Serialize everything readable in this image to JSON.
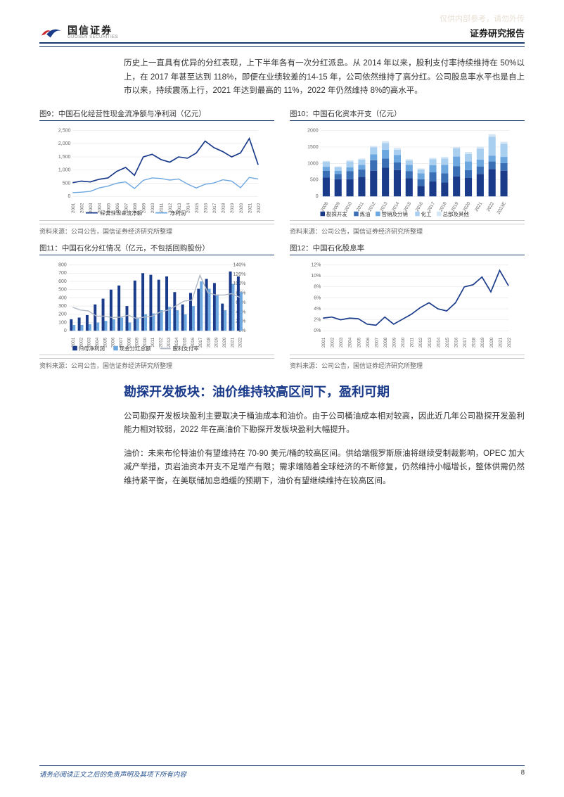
{
  "watermark": "仅供内部参考，请勿外传",
  "header": {
    "logo_cn": "国信证券",
    "logo_en": "GUOSEN SECURITIES",
    "report_type": "证券研究报告"
  },
  "paragraph1": "历史上一直具有优异的分红表现，上下半年各有一次分红派息。从 2014 年以来，股利支付率持续维持在 50%以上，在 2017 年甚至达到 118%，即便在业绩较差的14-15 年，公司依然维持了高分红。公司股息率水平也是自上市以来，持续震荡上行，2021 年达到最高的 11%，2022 年仍然维持 8%的高水平。",
  "chart9": {
    "title": "图9：中国石化经营性现金流净额与净利润（亿元）",
    "type": "line",
    "source": "资料来源：公司公告，国信证券经济研究所整理",
    "categories": [
      "2001",
      "2002",
      "2003",
      "2004",
      "2005",
      "2006",
      "2007",
      "2008",
      "2009",
      "2010",
      "2011",
      "2012",
      "2013",
      "2014",
      "2015",
      "2016",
      "2017",
      "2018",
      "2019",
      "2020",
      "2021",
      "2022"
    ],
    "series": [
      {
        "name": "经营性现金流净额",
        "color": "#1a3a8a",
        "width": 1.8,
        "values": [
          520,
          580,
          550,
          650,
          700,
          950,
          1100,
          800,
          1500,
          1600,
          1400,
          1300,
          1500,
          1450,
          1650,
          2100,
          1850,
          1700,
          1500,
          1650,
          2200,
          1200
        ]
      },
      {
        "name": "净利润",
        "color": "#6da7e0",
        "width": 1.5,
        "values": [
          140,
          160,
          190,
          320,
          390,
          500,
          550,
          300,
          610,
          700,
          680,
          620,
          660,
          470,
          320,
          460,
          510,
          630,
          580,
          330,
          720,
          660
        ]
      }
    ],
    "ylim": [
      0,
      2500
    ],
    "ytick_step": 500,
    "background_color": "#ffffff",
    "grid_color": "#dddddd",
    "label_fontsize": 7
  },
  "chart10": {
    "title": "图10：中国石化资本开支（亿元）",
    "type": "stacked-bar",
    "source": "资料来源：公司公告，国信证券经济研究所整理",
    "categories": [
      "2008",
      "2009",
      "2010",
      "2011",
      "2012",
      "2013",
      "2014",
      "2015",
      "2016",
      "2017",
      "2018",
      "2019",
      "2020",
      "2021",
      "2022",
      "2023E"
    ],
    "stack_keys": [
      "勘探开发",
      "炼油",
      "营销及分销",
      "化工",
      "总部及其他"
    ],
    "stack_colors": [
      "#1a3a8a",
      "#3a6eb5",
      "#6da7e0",
      "#a8cef0",
      "#d5e6f5"
    ],
    "stacks": [
      [
        570,
        210,
        120,
        150,
        30
      ],
      [
        520,
        160,
        100,
        110,
        20
      ],
      [
        520,
        250,
        110,
        180,
        40
      ],
      [
        590,
        230,
        140,
        160,
        30
      ],
      [
        780,
        320,
        180,
        210,
        40
      ],
      [
        870,
        280,
        270,
        200,
        60
      ],
      [
        800,
        230,
        230,
        160,
        50
      ],
      [
        550,
        220,
        190,
        130,
        40
      ],
      [
        320,
        200,
        180,
        120,
        30
      ],
      [
        460,
        270,
        220,
        180,
        40
      ],
      [
        420,
        280,
        260,
        190,
        50
      ],
      [
        610,
        310,
        290,
        250,
        40
      ],
      [
        560,
        240,
        260,
        230,
        60
      ],
      [
        680,
        230,
        210,
        330,
        60
      ],
      [
        830,
        230,
        180,
        570,
        80
      ],
      [
        780,
        230,
        190,
        400,
        60
      ]
    ],
    "ylim": [
      0,
      2000
    ],
    "ytick_step": 500,
    "background_color": "#ffffff",
    "grid_color": "#dddddd",
    "bar_width": 0.6
  },
  "chart11": {
    "title": "图11：中国石化分红情况（亿元，不包括回购股份）",
    "type": "combo",
    "source": "资料来源：公司公告，国信证券经济研究所整理",
    "categories": [
      "2001",
      "2002",
      "2003",
      "2004",
      "2005",
      "2006",
      "2007",
      "2008",
      "2009",
      "2010",
      "2011",
      "2012",
      "2013",
      "2014",
      "2015",
      "2016",
      "2017",
      "2018",
      "2019",
      "2020",
      "2021",
      "2022"
    ],
    "bars": [
      {
        "name": "归母净利润",
        "color": "#1a3a8a",
        "values": [
          140,
          160,
          190,
          320,
          390,
          500,
          550,
          300,
          610,
          700,
          680,
          620,
          660,
          470,
          320,
          460,
          510,
          630,
          580,
          330,
          720,
          660
        ]
      },
      {
        "name": "现金分红总额",
        "color": "#6da7e0",
        "values": [
          70,
          70,
          80,
          100,
          120,
          140,
          160,
          100,
          160,
          200,
          210,
          250,
          290,
          250,
          200,
          300,
          600,
          510,
          440,
          250,
          570,
          470
        ]
      }
    ],
    "line": {
      "name": "股利支付率",
      "color": "#b0b8c4",
      "values": [
        50,
        44,
        42,
        31,
        31,
        28,
        29,
        33,
        26,
        29,
        31,
        40,
        44,
        53,
        63,
        65,
        118,
        81,
        76,
        76,
        79,
        71
      ]
    },
    "ylim_left": [
      0,
      800
    ],
    "ytick_left": 100,
    "ylim_right": [
      0,
      140
    ],
    "ytick_right": 20,
    "yright_suffix": "%",
    "background_color": "#ffffff",
    "grid_color": "#dddddd",
    "bar_width": 0.35
  },
  "chart12": {
    "title": "图12：中国石化股息率",
    "type": "line",
    "source": "资料来源：公司公告，国信证券经济研究所整理",
    "categories": [
      "2001",
      "2002",
      "2003",
      "2004",
      "2005",
      "2006",
      "2007",
      "2008",
      "2009",
      "2010",
      "2011",
      "2012",
      "2013",
      "2014",
      "2015",
      "2016",
      "2017",
      "2018",
      "2019",
      "2020",
      "2021",
      "2022"
    ],
    "series": [
      {
        "name": "股息率",
        "color": "#1a3a8a",
        "width": 1.8,
        "values": [
          2.3,
          2.5,
          2.0,
          2.3,
          2.2,
          1.2,
          1.0,
          2.5,
          1.2,
          2.1,
          3.0,
          4.2,
          5.1,
          4.0,
          3.6,
          5.1,
          8.0,
          8.4,
          9.8,
          7.1,
          11.0,
          8.2
        ]
      }
    ],
    "ylim": [
      0,
      12
    ],
    "ytick_step": 2,
    "ysuffix": "%",
    "background_color": "#ffffff",
    "grid_color": "#dddddd"
  },
  "section_heading": "勘探开发板块：油价维持较高区间下，盈利可期",
  "paragraph2": "公司勘探开发板块盈利主要取决于桶油成本和油价。由于公司桶油成本相对较高，因此近几年公司勘探开发盈利能力相对较弱，2022 年在高油价下勘探开发板块盈利大幅提升。",
  "paragraph3": "油价：未来布伦特油价有望维持在 70-90 美元/桶的较高区间。供给端俄罗斯原油将继续受制裁影响，OPEC 加大减产举措，页岩油资本开支不足增产有限；需求端随着全球经济的不断修复，仍然维持小幅增长，整体供需仍然维持紧平衡，在美联储加息趋缓的预期下，油价有望继续维持在较高区间。",
  "footer": {
    "disclaimer": "请务必阅读正文之后的免责声明及其项下所有内容",
    "page": "8"
  }
}
